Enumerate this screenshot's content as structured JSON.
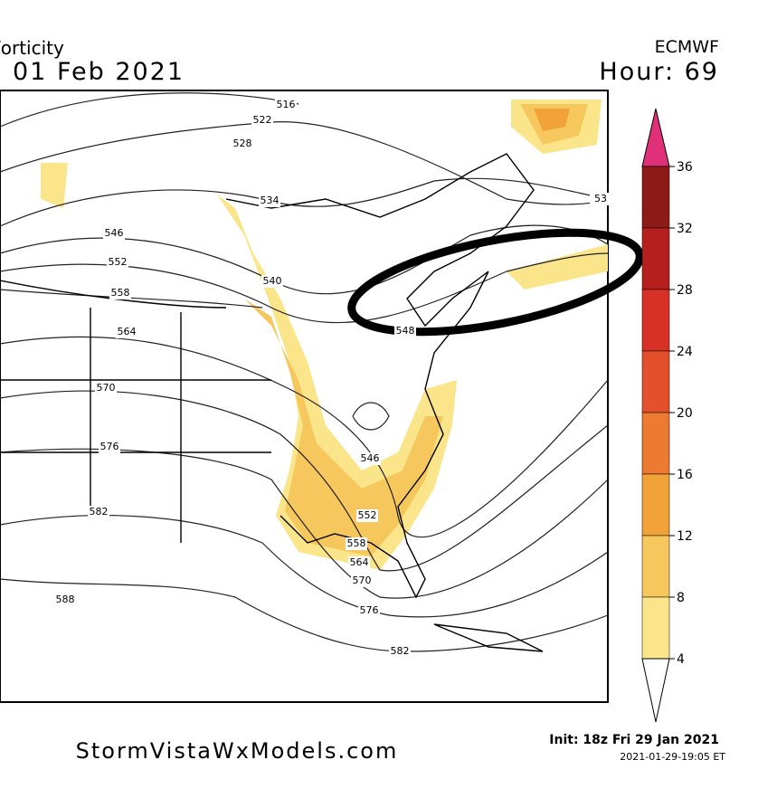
{
  "header": {
    "title": "/orticity",
    "date": "01 Feb 2021",
    "model": "ECMWF",
    "hour": "Hour: 69"
  },
  "colorbar": {
    "ticks": [
      36,
      32,
      28,
      24,
      20,
      16,
      12,
      8,
      4
    ],
    "colors": [
      "#8e1a17",
      "#b5201f",
      "#d73027",
      "#e4502b",
      "#ec7a30",
      "#f1a33a",
      "#f6c75d",
      "#fbe58a"
    ],
    "top_color": "#e0307a"
  },
  "contour_labels": [
    "516",
    "522",
    "528",
    "534",
    "540",
    "546",
    "552",
    "558",
    "564",
    "570",
    "576",
    "582",
    "588",
    "546",
    "552",
    "558",
    "564",
    "570",
    "576",
    "582",
    "548",
    "53"
  ],
  "footer": {
    "site": "StormVistaWxModels.com",
    "init": "Init: 18z Fri 29 Jan 2021",
    "timestamp": "2021-01-29-19:05 ET"
  }
}
